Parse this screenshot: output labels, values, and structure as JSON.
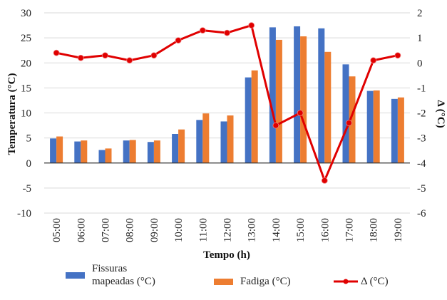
{
  "chart_data": {
    "type": "bar",
    "categories": [
      "05:00",
      "06:00",
      "07:00",
      "08:00",
      "09:00",
      "10:00",
      "11:00",
      "12:00",
      "13:00",
      "14:00",
      "15:00",
      "16:00",
      "17:00",
      "18:00",
      "19:00"
    ],
    "series": [
      {
        "name": "Fissuras mapeadas (°C)",
        "type": "bar",
        "axis": "left",
        "color": "#4472C4",
        "values": [
          4.9,
          4.3,
          2.6,
          4.5,
          4.2,
          5.8,
          8.6,
          8.3,
          17.1,
          27.1,
          27.3,
          26.9,
          19.7,
          14.4,
          12.8
        ]
      },
      {
        "name": "Fadiga (°C)",
        "type": "bar",
        "axis": "left",
        "color": "#ED7D31",
        "values": [
          5.3,
          4.5,
          2.9,
          4.6,
          4.5,
          6.7,
          9.9,
          9.5,
          18.5,
          24.6,
          25.3,
          22.2,
          17.3,
          14.5,
          13.1
        ]
      },
      {
        "name": "Δ (°C)",
        "type": "line",
        "axis": "right",
        "color": "#E00000",
        "values": [
          0.4,
          0.2,
          0.3,
          0.1,
          0.3,
          0.9,
          1.3,
          1.2,
          1.5,
          -2.5,
          -2.0,
          -4.7,
          -2.4,
          0.1,
          0.3
        ]
      }
    ],
    "title": "",
    "xlabel": "Tempo (h)",
    "ylabel": "Temperatura (°C)",
    "y2label": "Δ (°C)",
    "ylim": [
      -10,
      30
    ],
    "yticks": [
      "30",
      "25",
      "20",
      "15",
      "10",
      "5",
      "0",
      "-5",
      "-10"
    ],
    "y2lim": [
      -6,
      2
    ],
    "y2ticks": [
      "2",
      "1",
      "0",
      "-1",
      "-2",
      "-3",
      "-4",
      "-5",
      "-6"
    ],
    "grid": true,
    "legend_position": "bottom"
  },
  "legend": {
    "fissuras_line1": "Fissuras",
    "fissuras_line2": "mapeadas (°C)",
    "fadiga": "Fadiga (°C)",
    "delta": "Δ (°C)"
  }
}
